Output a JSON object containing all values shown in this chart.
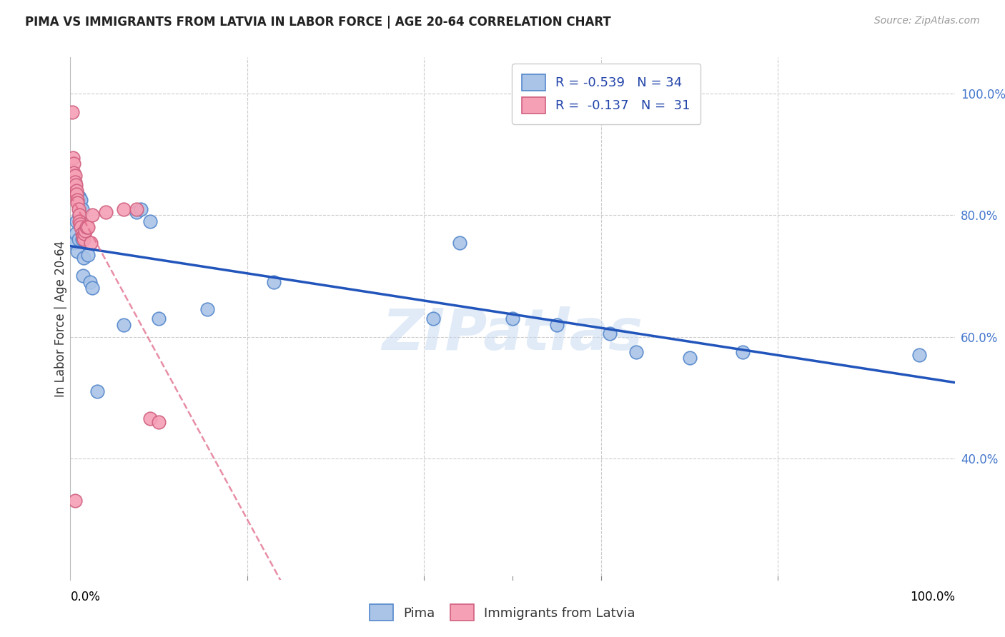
{
  "title": "PIMA VS IMMIGRANTS FROM LATVIA IN LABOR FORCE | AGE 20-64 CORRELATION CHART",
  "source": "Source: ZipAtlas.com",
  "ylabel": "In Labor Force | Age 20-64",
  "legend_pima_r": "-0.539",
  "legend_pima_n": "34",
  "legend_latvia_r": "-0.137",
  "legend_latvia_n": "31",
  "pima_color": "#aac4e8",
  "pima_edge": "#5588cc",
  "latvia_color": "#f5a0b5",
  "latvia_edge": "#d06080",
  "pima_line_color": "#2255bb",
  "latvia_line_color": "#e06888",
  "watermark": "ZIPatlas",
  "pima_x": [
    0.004,
    0.006,
    0.007,
    0.008,
    0.009,
    0.01,
    0.01,
    0.011,
    0.012,
    0.013,
    0.013,
    0.014,
    0.015,
    0.017,
    0.02,
    0.022,
    0.025,
    0.03,
    0.06,
    0.075,
    0.08,
    0.09,
    0.1,
    0.155,
    0.23,
    0.41,
    0.44,
    0.5,
    0.55,
    0.61,
    0.64,
    0.7,
    0.76,
    0.96
  ],
  "pima_y": [
    0.755,
    0.77,
    0.79,
    0.74,
    0.76,
    0.83,
    0.8,
    0.815,
    0.825,
    0.81,
    0.76,
    0.7,
    0.73,
    0.775,
    0.735,
    0.69,
    0.68,
    0.51,
    0.62,
    0.805,
    0.81,
    0.79,
    0.63,
    0.645,
    0.69,
    0.63,
    0.755,
    0.63,
    0.62,
    0.605,
    0.575,
    0.565,
    0.575,
    0.57
  ],
  "latvia_x": [
    0.002,
    0.003,
    0.004,
    0.004,
    0.005,
    0.005,
    0.006,
    0.007,
    0.007,
    0.008,
    0.008,
    0.009,
    0.01,
    0.01,
    0.011,
    0.012,
    0.013,
    0.014,
    0.015,
    0.016,
    0.017,
    0.018,
    0.02,
    0.023,
    0.025,
    0.04,
    0.06,
    0.075,
    0.09,
    0.1,
    0.005
  ],
  "latvia_y": [
    0.97,
    0.895,
    0.885,
    0.87,
    0.865,
    0.855,
    0.85,
    0.84,
    0.835,
    0.825,
    0.82,
    0.81,
    0.8,
    0.79,
    0.785,
    0.78,
    0.77,
    0.765,
    0.76,
    0.77,
    0.775,
    0.78,
    0.78,
    0.755,
    0.8,
    0.805,
    0.81,
    0.81,
    0.465,
    0.46,
    0.33
  ],
  "xlim": [
    0.0,
    1.0
  ],
  "ylim": [
    0.2,
    1.06
  ],
  "yticks": [
    1.0,
    0.8,
    0.6,
    0.4
  ],
  "ytick_labels": [
    "100.0%",
    "80.0%",
    "60.0%",
    "40.0%"
  ],
  "xtick_positions": [
    0.0,
    0.2,
    0.4,
    0.5,
    0.6,
    0.8,
    1.0
  ],
  "background_color": "#ffffff",
  "grid_color": "#cccccc"
}
